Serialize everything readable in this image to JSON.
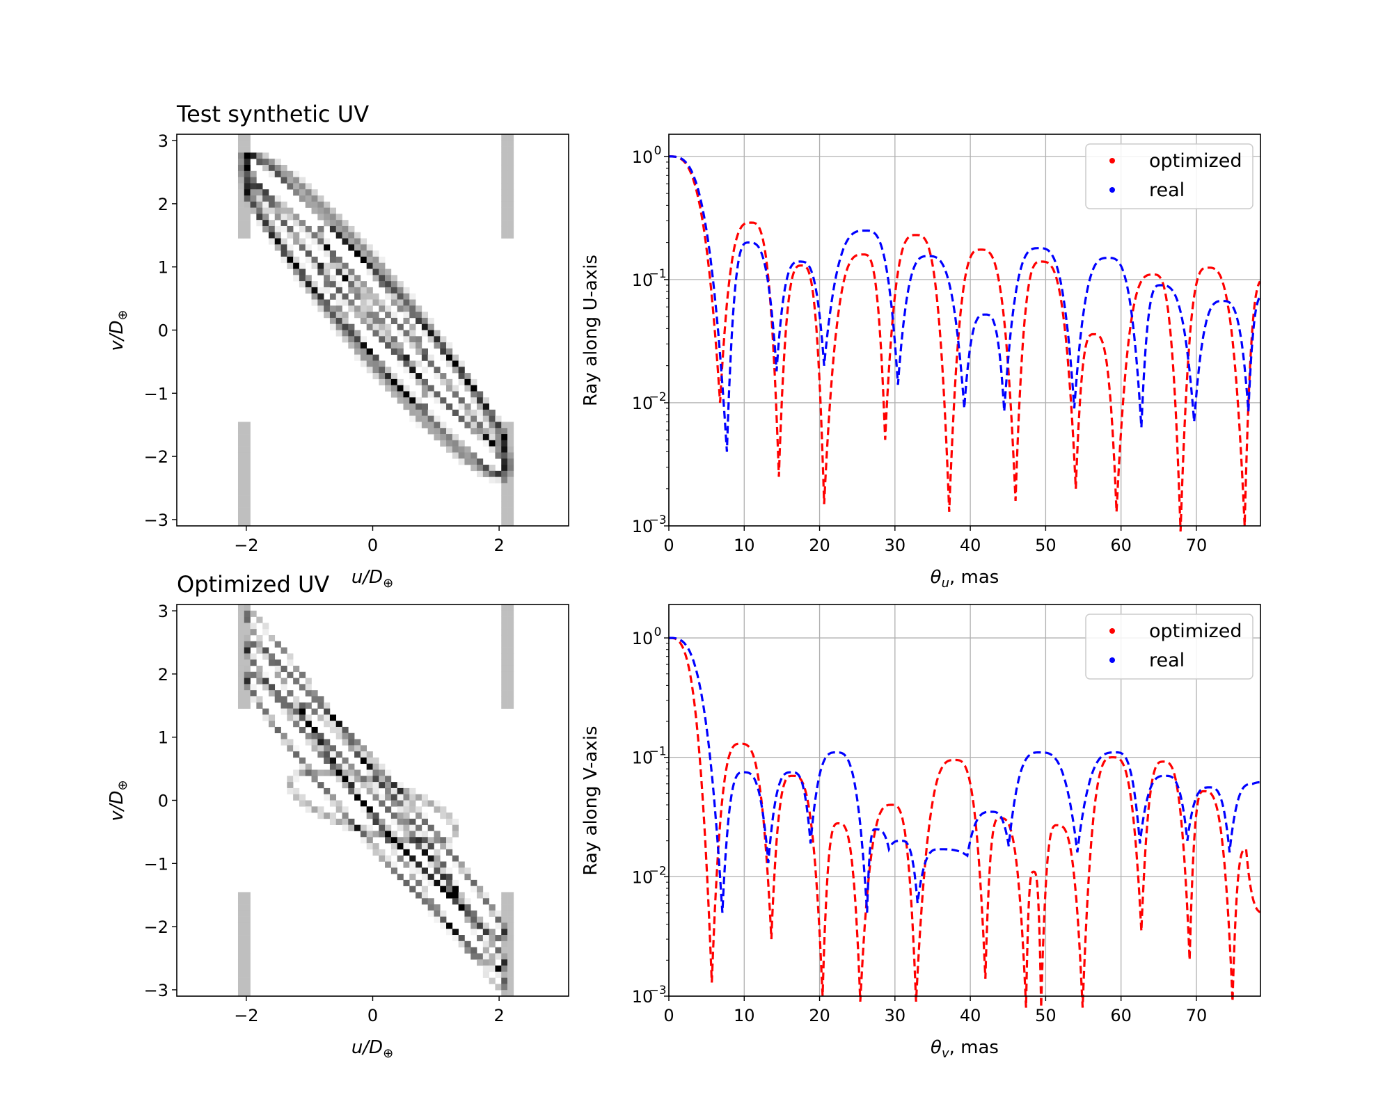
{
  "chart_data": [
    {
      "id": "uv_test",
      "type": "heatmap",
      "title": "Test synthetic UV",
      "xlabel": "u/D",
      "ylabel": "v/D",
      "xlabel_sub": "⊕",
      "ylabel_sub": "⊕",
      "xlim": [
        -3.1,
        3.1
      ],
      "ylim": [
        -3.1,
        3.1
      ],
      "xticks": [
        -2,
        0,
        2
      ],
      "yticks": [
        -3,
        -2,
        -1,
        0,
        1,
        2,
        3
      ],
      "tick_labels_x": [
        "−2",
        "0",
        "2"
      ],
      "tick_labels_y": [
        "−3",
        "−2",
        "−1",
        "0",
        "1",
        "2",
        "3"
      ],
      "colormap": "gray_r",
      "tracks": [
        {
          "u1": -2.0,
          "v1": 2.75,
          "u2": 2.1,
          "v2": -1.85,
          "w": 0.32,
          "d": 0.65
        },
        {
          "u1": -2.0,
          "v1": 2.3,
          "u2": 2.1,
          "v2": -2.3,
          "w": 0.32,
          "d": 0.6
        },
        {
          "u1": -2.0,
          "v1": 2.75,
          "u2": 2.1,
          "v2": -2.3,
          "w": 0.55,
          "d": 0.45
        },
        {
          "u1": -0.8,
          "v1": 1.65,
          "u2": 0.85,
          "v2": -0.6,
          "w": 0.22,
          "d": 0.55
        },
        {
          "u1": -0.8,
          "v1": 1.05,
          "u2": 0.85,
          "v2": -1.2,
          "w": 0.22,
          "d": 0.55
        }
      ]
    },
    {
      "id": "ray_u",
      "type": "line",
      "ylabel": "Ray along U-axis",
      "xlabel": "θ",
      "xlabel_sub": "u",
      "xlabel_unit": ",  mas",
      "xlim": [
        0,
        78.5
      ],
      "ylim_log10": [
        -3,
        0.18
      ],
      "xticks": [
        0,
        10,
        20,
        30,
        40,
        50,
        60,
        70
      ],
      "yticks_log10": [
        -3,
        -2,
        -1,
        0
      ],
      "ytick_labels": [
        {
          "base": "10",
          "exp": "−3"
        },
        {
          "base": "10",
          "exp": "−2"
        },
        {
          "base": "10",
          "exp": "−1"
        },
        {
          "base": "10",
          "exp": "0"
        }
      ],
      "grid": true,
      "legend": {
        "position": "top-right",
        "entries": [
          "optimized",
          "real"
        ]
      },
      "series": [
        {
          "name": "optimized",
          "color": "#ff0000",
          "start": 1.0,
          "nulls": [
            6.8,
            14.6,
            20.6,
            28.7,
            37.2,
            46.0,
            54.0,
            59.4,
            67.9,
            76.4
          ],
          "null_depths": [
            0.01,
            0.0025,
            0.0015,
            0.005,
            0.0013,
            0.0016,
            0.002,
            0.0013,
            0.0009,
            0.001
          ],
          "peaks": [
            {
              "x": 10.9,
              "y": 0.29
            },
            {
              "x": 17.6,
              "y": 0.13
            },
            {
              "x": 25.8,
              "y": 0.16
            },
            {
              "x": 32.8,
              "y": 0.23
            },
            {
              "x": 41.4,
              "y": 0.175
            },
            {
              "x": 49.4,
              "y": 0.14
            },
            {
              "x": 56.4,
              "y": 0.036
            },
            {
              "x": 64.3,
              "y": 0.11
            },
            {
              "x": 71.5,
              "y": 0.125
            },
            {
              "x": 79.0,
              "y": 0.1
            }
          ]
        },
        {
          "name": "real",
          "color": "#0000ff",
          "start": 1.0,
          "nulls": [
            7.7,
            14.3,
            20.6,
            30.4,
            39.2,
            44.5,
            53.8,
            62.7,
            69.7,
            76.9
          ],
          "null_depths": [
            0.004,
            0.018,
            0.02,
            0.014,
            0.009,
            0.0085,
            0.009,
            0.0063,
            0.007,
            0.0085
          ],
          "peaks": [
            {
              "x": 10.6,
              "y": 0.2
            },
            {
              "x": 17.4,
              "y": 0.14
            },
            {
              "x": 26.1,
              "y": 0.25
            },
            {
              "x": 34.4,
              "y": 0.155
            },
            {
              "x": 42.0,
              "y": 0.052
            },
            {
              "x": 49.1,
              "y": 0.18
            },
            {
              "x": 58.3,
              "y": 0.15
            },
            {
              "x": 65.2,
              "y": 0.09
            },
            {
              "x": 73.5,
              "y": 0.067
            },
            {
              "x": 79.0,
              "y": 0.075
            }
          ]
        }
      ]
    },
    {
      "id": "uv_opt",
      "type": "heatmap",
      "title": "Optimized UV",
      "xlabel": "u/D",
      "ylabel": "v/D",
      "xlabel_sub": "⊕",
      "ylabel_sub": "⊕",
      "xlim": [
        -3.1,
        3.1
      ],
      "ylim": [
        -3.1,
        3.1
      ],
      "xticks": [
        -2,
        0,
        2
      ],
      "yticks": [
        -3,
        -2,
        -1,
        0,
        1,
        2,
        3
      ],
      "tick_labels_x": [
        "−2",
        "0",
        "2"
      ],
      "tick_labels_y": [
        "−3",
        "−2",
        "−1",
        "0",
        "1",
        "2",
        "3"
      ],
      "colormap": "gray_r",
      "tracks": [
        {
          "u1": -2.0,
          "v1": 2.5,
          "u2": 2.1,
          "v2": -2.2,
          "w": 0.28,
          "d": 0.6
        },
        {
          "u1": -2.0,
          "v1": 2.0,
          "u2": 2.1,
          "v2": -2.7,
          "w": 0.28,
          "d": 0.6
        },
        {
          "u1": -1.1,
          "v1": 1.5,
          "u2": 1.3,
          "v2": -1.5,
          "w": 0.22,
          "d": 0.7
        },
        {
          "u1": -2.0,
          "v1": 3.0,
          "u2": 2.1,
          "v2": -3.0,
          "w": 0.2,
          "d": 0.55
        },
        {
          "u1": -1.3,
          "v1": 0.3,
          "u2": 1.3,
          "v2": -0.5,
          "w": 0.4,
          "d": 0.35
        }
      ]
    },
    {
      "id": "ray_v",
      "type": "line",
      "ylabel": "Ray along V-axis",
      "xlabel": "θ",
      "xlabel_sub": "v",
      "xlabel_unit": ",  mas",
      "xlim": [
        0,
        78.5
      ],
      "ylim_log10": [
        -3,
        0.28
      ],
      "xticks": [
        0,
        10,
        20,
        30,
        40,
        50,
        60,
        70
      ],
      "yticks_log10": [
        -3,
        -2,
        -1,
        0
      ],
      "ytick_labels": [
        {
          "base": "10",
          "exp": "−3"
        },
        {
          "base": "10",
          "exp": "−2"
        },
        {
          "base": "10",
          "exp": "−1"
        },
        {
          "base": "10",
          "exp": "0"
        }
      ],
      "grid": true,
      "legend": {
        "position": "top-right",
        "entries": [
          "optimized",
          "real"
        ]
      },
      "series": [
        {
          "name": "optimized",
          "color": "#ff0000",
          "start": 1.0,
          "nulls": [
            5.7,
            13.6,
            20.4,
            25.4,
            32.8,
            42.0,
            47.4,
            49.4,
            54.9,
            62.7,
            69.1,
            74.8
          ],
          "null_depths": [
            0.0013,
            0.003,
            0.001,
            0.0009,
            0.0009,
            0.0014,
            0.0008,
            0.0008,
            0.0008,
            0.0035,
            0.002,
            0.0009
          ],
          "peaks": [
            {
              "x": 9.5,
              "y": 0.13
            },
            {
              "x": 16.4,
              "y": 0.07
            },
            {
              "x": 22.5,
              "y": 0.028
            },
            {
              "x": 29.6,
              "y": 0.04
            },
            {
              "x": 38.0,
              "y": 0.095
            },
            {
              "x": 43.9,
              "y": 0.031
            },
            {
              "x": 48.4,
              "y": 0.011
            },
            {
              "x": 51.5,
              "y": 0.027
            },
            {
              "x": 58.9,
              "y": 0.1
            },
            {
              "x": 65.6,
              "y": 0.092
            },
            {
              "x": 71.0,
              "y": 0.052
            },
            {
              "x": 76.6,
              "y": 0.017
            },
            {
              "x": 79.0,
              "y": 0.005
            }
          ]
        },
        {
          "name": "real",
          "color": "#0000ff",
          "start": 1.0,
          "nulls": [
            7.1,
            13.2,
            18.8,
            26.3,
            29.2,
            33.0,
            39.6,
            45.1,
            54.2,
            62.5,
            68.8,
            74.4
          ],
          "null_depths": [
            0.005,
            0.013,
            0.019,
            0.005,
            0.017,
            0.006,
            0.015,
            0.018,
            0.016,
            0.019,
            0.02,
            0.016
          ],
          "peaks": [
            {
              "x": 9.9,
              "y": 0.075
            },
            {
              "x": 16.3,
              "y": 0.075
            },
            {
              "x": 22.2,
              "y": 0.11
            },
            {
              "x": 27.4,
              "y": 0.025
            },
            {
              "x": 30.8,
              "y": 0.02
            },
            {
              "x": 35.9,
              "y": 0.017
            },
            {
              "x": 42.8,
              "y": 0.035
            },
            {
              "x": 49.2,
              "y": 0.11
            },
            {
              "x": 59.3,
              "y": 0.11
            },
            {
              "x": 65.9,
              "y": 0.07
            },
            {
              "x": 71.7,
              "y": 0.056
            },
            {
              "x": 77.5,
              "y": 0.06
            },
            {
              "x": 79.0,
              "y": 0.062
            }
          ]
        }
      ]
    }
  ]
}
